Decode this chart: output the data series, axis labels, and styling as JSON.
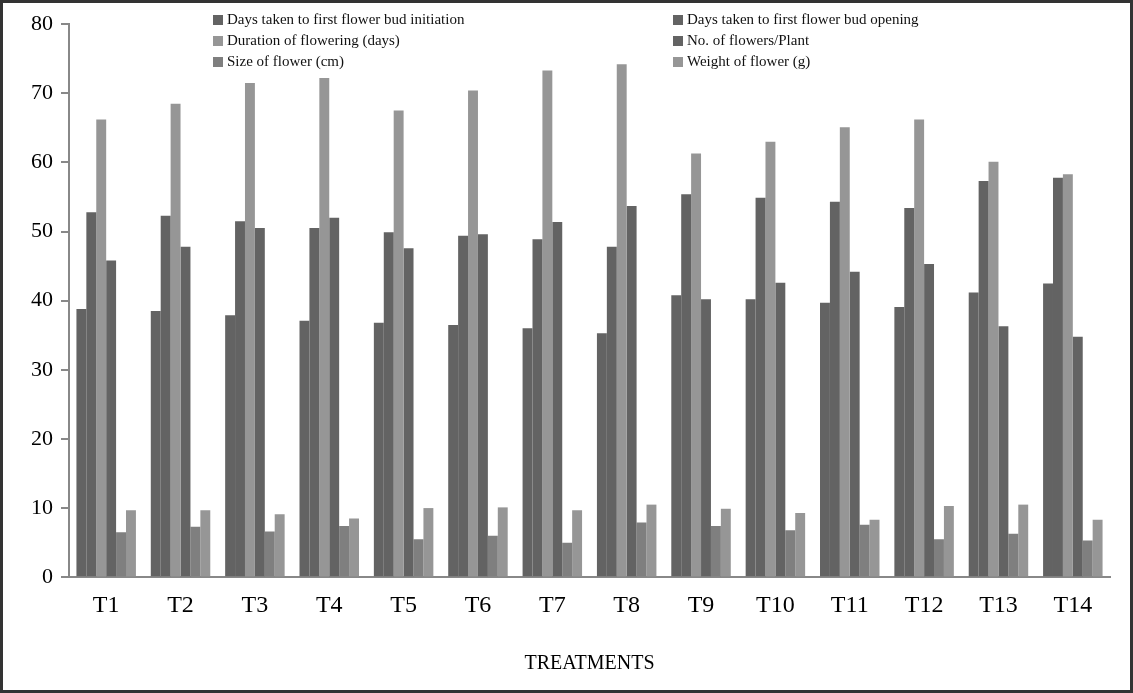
{
  "chart_data": {
    "type": "bar",
    "xlabel": "TREATMENTS",
    "categories": [
      "T1",
      "T2",
      "T3",
      "T4",
      "T5",
      "T6",
      "T7",
      "T8",
      "T9",
      "T10",
      "T11",
      "T12",
      "T13",
      "T14"
    ],
    "series": [
      {
        "name": "Days taken to first flower bud initiation",
        "color": "#636363",
        "values": [
          38.8,
          38.5,
          37.9,
          37.1,
          36.8,
          36.5,
          36.0,
          35.3,
          40.8,
          40.2,
          39.7,
          39.1,
          41.2,
          42.5
        ]
      },
      {
        "name": "Days taken to first flower bud opening",
        "color": "#636363",
        "values": [
          52.8,
          52.3,
          51.5,
          50.5,
          49.9,
          49.4,
          48.9,
          47.8,
          55.4,
          54.9,
          54.3,
          53.4,
          57.3,
          57.8
        ]
      },
      {
        "name": "Duration of flowering (days)",
        "color": "#969696",
        "values": [
          66.2,
          68.5,
          71.5,
          72.2,
          67.5,
          70.4,
          73.3,
          74.2,
          61.3,
          63.0,
          65.1,
          66.2,
          60.1,
          58.3
        ]
      },
      {
        "name": "No. of flowers/Plant",
        "color": "#636363",
        "values": [
          45.8,
          47.8,
          50.5,
          52.0,
          47.6,
          49.6,
          51.4,
          53.7,
          40.2,
          42.6,
          44.2,
          45.3,
          36.3,
          34.8
        ]
      },
      {
        "name": "Size of flower (cm)",
        "color": "#7f7f7f",
        "values": [
          6.5,
          7.3,
          6.6,
          7.4,
          5.5,
          6.0,
          5.0,
          7.9,
          7.4,
          6.8,
          7.6,
          5.5,
          6.3,
          5.3
        ]
      },
      {
        "name": "Weight of flower (g)",
        "color": "#969696",
        "values": [
          9.7,
          9.7,
          9.1,
          8.5,
          10.0,
          10.1,
          9.7,
          10.5,
          9.9,
          9.3,
          8.3,
          10.3,
          10.5,
          8.3
        ]
      }
    ],
    "ylim": [
      0,
      80
    ],
    "yticks": [
      0,
      10,
      20,
      30,
      40,
      50,
      60,
      70,
      80
    ],
    "grid": false,
    "legend": "top"
  }
}
